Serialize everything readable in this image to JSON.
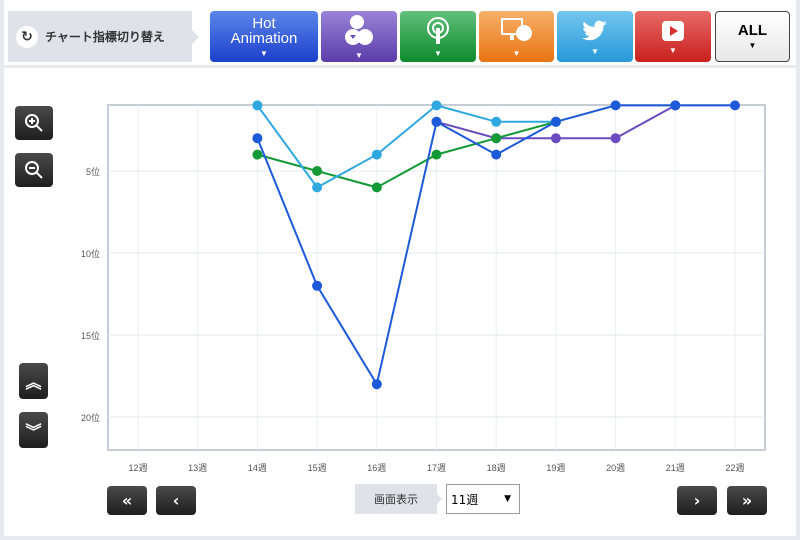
{
  "header": {
    "switch_label": "チャート指標切り替え",
    "buttons": [
      {
        "label": "Hot Animation",
        "icon": "hot-animation",
        "color": "#2a52d6"
      },
      {
        "label": "",
        "icon": "download-cd-icon",
        "color": "#7455bf"
      },
      {
        "label": "",
        "icon": "radio-antenna-icon",
        "color": "#1f9a3a"
      },
      {
        "label": "",
        "icon": "pc-cd-icon",
        "color": "#ef8b25"
      },
      {
        "label": "",
        "icon": "twitter-icon",
        "color": "#3ba9e2"
      },
      {
        "label": "",
        "icon": "youtube-icon",
        "color": "#d8312f"
      },
      {
        "label": "ALL",
        "icon": "all",
        "color": "#ffffff"
      }
    ]
  },
  "chart_data": {
    "type": "line",
    "categories": [
      "12週",
      "13週",
      "14週",
      "15週",
      "16週",
      "17週",
      "18週",
      "19週",
      "20週",
      "21週",
      "22週"
    ],
    "y_ticks": [
      "5位",
      "10位",
      "15位",
      "20位"
    ],
    "ylim": [
      1,
      22
    ],
    "y_inverted": true,
    "grid": true,
    "series": [
      {
        "color": "#1c5ad9",
        "values": [
          null,
          null,
          3,
          12,
          18,
          2,
          4,
          2,
          1,
          1,
          1
        ]
      },
      {
        "color": "#2fa8e0",
        "values": [
          null,
          null,
          1,
          6,
          4,
          1,
          2,
          2,
          null,
          null,
          null
        ]
      },
      {
        "color": "#139a36",
        "values": [
          null,
          null,
          4,
          5,
          6,
          4,
          3,
          2,
          null,
          null,
          null
        ]
      },
      {
        "color": "#6a4cc0",
        "values": [
          null,
          null,
          null,
          null,
          null,
          2,
          3,
          3,
          3,
          1,
          null
        ]
      }
    ]
  },
  "controls": {
    "display_label": "画面表示",
    "display_value": "11週"
  }
}
